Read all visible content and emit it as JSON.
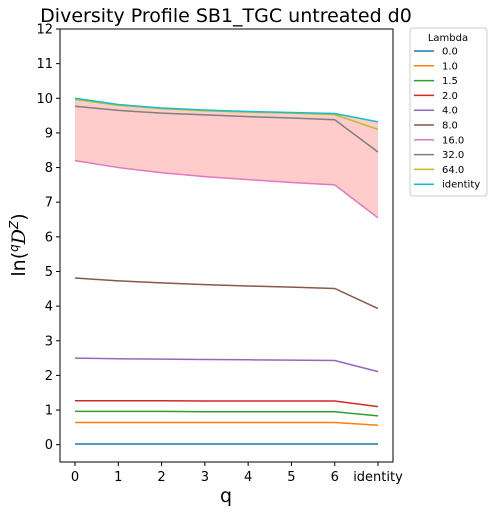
{
  "chart_data": {
    "type": "line",
    "title": "Diversity Profile SB1_TGC untreated d0",
    "xlabel": "q",
    "ylabel_main": "ln(",
    "ylabel_sup": "q",
    "ylabel_D": "D",
    "ylabel_supZ": "Z",
    "ylabel_close": ")",
    "x_ticks": [
      "0",
      "1",
      "2",
      "3",
      "4",
      "5",
      "6",
      "identity"
    ],
    "y_ticks": [
      "0",
      "1",
      "2",
      "3",
      "4",
      "5",
      "6",
      "7",
      "8",
      "9",
      "10",
      "11",
      "12"
    ],
    "ylim": [
      -0.5,
      12
    ],
    "legend": {
      "title": "Lambda",
      "placement": "outside-right"
    },
    "shaded_band": {
      "lower_series": "16.0",
      "upper_series": "identity",
      "color": "#ffcccc"
    },
    "series": [
      {
        "name": "0.0",
        "color": "#1f77b4",
        "values": [
          0.02,
          0.02,
          0.02,
          0.02,
          0.02,
          0.02,
          0.02,
          0.02
        ]
      },
      {
        "name": "1.0",
        "color": "#ff7f0e",
        "values": [
          0.64,
          0.64,
          0.64,
          0.64,
          0.64,
          0.64,
          0.64,
          0.56
        ]
      },
      {
        "name": "1.5",
        "color": "#2ca02c",
        "values": [
          0.96,
          0.96,
          0.96,
          0.95,
          0.95,
          0.95,
          0.95,
          0.83
        ]
      },
      {
        "name": "2.0",
        "color": "#d62728",
        "values": [
          1.27,
          1.27,
          1.27,
          1.26,
          1.26,
          1.26,
          1.26,
          1.1
        ]
      },
      {
        "name": "4.0",
        "color": "#9467bd",
        "values": [
          2.5,
          2.48,
          2.47,
          2.46,
          2.45,
          2.44,
          2.43,
          2.11
        ]
      },
      {
        "name": "8.0",
        "color": "#8c564b",
        "values": [
          4.81,
          4.73,
          4.67,
          4.62,
          4.58,
          4.55,
          4.51,
          3.93
        ]
      },
      {
        "name": "16.0",
        "color": "#e377c2",
        "values": [
          8.2,
          8.0,
          7.85,
          7.74,
          7.65,
          7.57,
          7.5,
          6.55
        ]
      },
      {
        "name": "32.0",
        "color": "#7f7f7f",
        "values": [
          9.77,
          9.65,
          9.57,
          9.52,
          9.47,
          9.43,
          9.38,
          8.45
        ]
      },
      {
        "name": "64.0",
        "color": "#bcbd22",
        "values": [
          9.97,
          9.8,
          9.7,
          9.64,
          9.6,
          9.57,
          9.53,
          9.1
        ]
      },
      {
        "name": "identity",
        "color": "#17becf",
        "values": [
          10.0,
          9.82,
          9.72,
          9.66,
          9.62,
          9.59,
          9.56,
          9.32
        ]
      }
    ]
  }
}
